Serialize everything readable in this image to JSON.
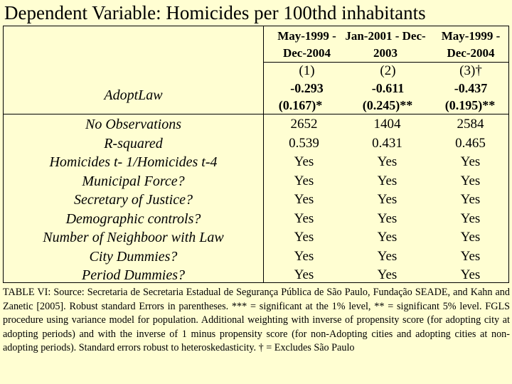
{
  "title": "Dependent Variable: Homicides per 100thd inhabitants",
  "columns": [
    {
      "period_line1": "May-1999 -",
      "period_line2": "Dec-2004",
      "number": "(1)"
    },
    {
      "period_line1": "Jan-2001 - Dec-",
      "period_line2": "2003",
      "number": "(2)"
    },
    {
      "period_line1": "May-1999 -",
      "period_line2": "Dec-2004",
      "number": "(3)†"
    }
  ],
  "main_row": {
    "label": "AdoptLaw",
    "coef": [
      "-0.293",
      "-0.611",
      "-0.437"
    ],
    "se": [
      "(0.167)*",
      "(0.245)**",
      "(0.195)**"
    ]
  },
  "rows": [
    {
      "label": "No Observations",
      "values": [
        "2652",
        "1404",
        "2584"
      ]
    },
    {
      "label": "R-squared",
      "values": [
        "0.539",
        "0.431",
        "0.465"
      ]
    },
    {
      "label": "Homicides t- 1/Homicides t-4",
      "values": [
        "Yes",
        "Yes",
        "Yes"
      ]
    },
    {
      "label": "Municipal Force?",
      "values": [
        "Yes",
        "Yes",
        "Yes"
      ]
    },
    {
      "label": "Secretary of Justice?",
      "values": [
        "Yes",
        "Yes",
        "Yes"
      ]
    },
    {
      "label": "Demographic controls?",
      "values": [
        "Yes",
        "Yes",
        "Yes"
      ]
    },
    {
      "label": "Number of Neighboor with Law",
      "values": [
        "Yes",
        "Yes",
        "Yes"
      ]
    },
    {
      "label": "City Dummies?",
      "values": [
        "Yes",
        "Yes",
        "Yes"
      ]
    },
    {
      "label": "Period Dummies?",
      "values": [
        "Yes",
        "Yes",
        "Yes"
      ]
    }
  ],
  "caption": "TABLE VI: Source: Secretaria de Secretaria Estadual de Segurança Pública de São Paulo, Fundação SEADE, and Kahn and Zanetic [2005]. Robust standard Errors in parentheses. *** = significant at the 1% level, ** = significant 5% level. FGLS procedure using variance model for population. Additional weighting with inverse of propensity score (for adopting city at adopting periods) and with the inverse of 1 minus propensity score (for non-Adopting cities and adopting cities at non-adopting periods). Standard errors robust to heteroskedasticity. † = Excludes São Paulo"
}
